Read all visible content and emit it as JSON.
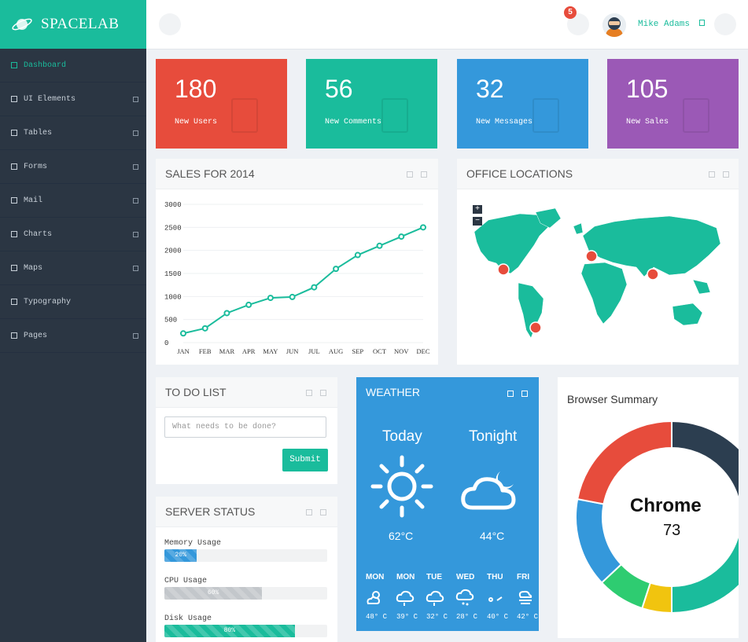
{
  "brand": {
    "name": "SPACELAB"
  },
  "sidebar": {
    "items": [
      {
        "label": "Dashboard",
        "active": true,
        "has_children": false
      },
      {
        "label": "UI Elements",
        "active": false,
        "has_children": true
      },
      {
        "label": "Tables",
        "active": false,
        "has_children": true
      },
      {
        "label": "Forms",
        "active": false,
        "has_children": true
      },
      {
        "label": "Mail",
        "active": false,
        "has_children": true
      },
      {
        "label": "Charts",
        "active": false,
        "has_children": true
      },
      {
        "label": "Maps",
        "active": false,
        "has_children": true
      },
      {
        "label": "Typography",
        "active": false,
        "has_children": false
      },
      {
        "label": "Pages",
        "active": false,
        "has_children": true
      }
    ]
  },
  "topbar": {
    "notification_count": "5",
    "username": "Mike Adams"
  },
  "stats": [
    {
      "value": "180",
      "label": "New Users",
      "color": "#e74c3c"
    },
    {
      "value": "56",
      "label": "New Comments",
      "color": "#1abc9c"
    },
    {
      "value": "32",
      "label": "New Messages",
      "color": "#3498db"
    },
    {
      "value": "105",
      "label": "New Sales",
      "color": "#9b59b6"
    }
  ],
  "sales_panel": {
    "title": "SALES FOR 2014"
  },
  "office_panel": {
    "title": "OFFICE LOCATIONS",
    "zoom_in": "+",
    "zoom_out": "−"
  },
  "todo": {
    "title": "TO DO LIST",
    "placeholder": "What needs to be done?",
    "submit": "Submit"
  },
  "server": {
    "title": "SERVER STATUS",
    "items": [
      {
        "label": "Memory Usage",
        "value": 20,
        "text": "20%",
        "color": "#3498db"
      },
      {
        "label": "CPU Usage",
        "value": 60,
        "text": "60%",
        "color": "#c3c7cb"
      },
      {
        "label": "Disk Usage",
        "value": 80,
        "text": "80%",
        "color": "#1abc9c"
      }
    ]
  },
  "weather": {
    "title": "WEATHER",
    "today": {
      "label": "Today",
      "temp": "62°C"
    },
    "tonight": {
      "label": "Tonight",
      "temp": "44°C"
    },
    "days": [
      {
        "day": "MON",
        "temp": "48° C",
        "icon": "partly-sunny-icon"
      },
      {
        "day": "MON",
        "temp": "39° C",
        "icon": "cloud-icon"
      },
      {
        "day": "TUE",
        "temp": "32° C",
        "icon": "cloud-icon"
      },
      {
        "day": "WED",
        "temp": "28° C",
        "icon": "rain-cloud-icon"
      },
      {
        "day": "THU",
        "temp": "40° C",
        "icon": "wind-icon"
      },
      {
        "day": "FRI",
        "temp": "42° C",
        "icon": "fog-icon"
      }
    ]
  },
  "browser": {
    "title": "Browser Summary",
    "center_label": "Chrome",
    "center_value": "73"
  },
  "chart_data": [
    {
      "type": "line",
      "title": "SALES FOR 2014",
      "categories": [
        "JAN",
        "FEB",
        "MAR",
        "APR",
        "MAY",
        "JUN",
        "JUL",
        "AUG",
        "SEP",
        "OCT",
        "NOV",
        "DEC"
      ],
      "values": [
        200,
        310,
        640,
        820,
        970,
        990,
        1200,
        1600,
        1900,
        2100,
        2300,
        2500
      ],
      "ylim": [
        0,
        3000
      ],
      "yticks": [
        0,
        500,
        1000,
        1500,
        2000,
        2500,
        3000
      ],
      "grid": true,
      "color": "#1abc9c"
    },
    {
      "type": "pie",
      "title": "Browser Summary",
      "slices": [
        {
          "label": "",
          "value": 25,
          "color": "#2c3e50"
        },
        {
          "label": "",
          "value": 25,
          "color": "#1abc9c"
        },
        {
          "label": "",
          "value": 5,
          "color": "#f1c40f"
        },
        {
          "label": "",
          "value": 8,
          "color": "#2ecc71"
        },
        {
          "label": "",
          "value": 15,
          "color": "#3498db"
        },
        {
          "label": "",
          "value": 22,
          "color": "#e74c3c"
        }
      ]
    }
  ]
}
